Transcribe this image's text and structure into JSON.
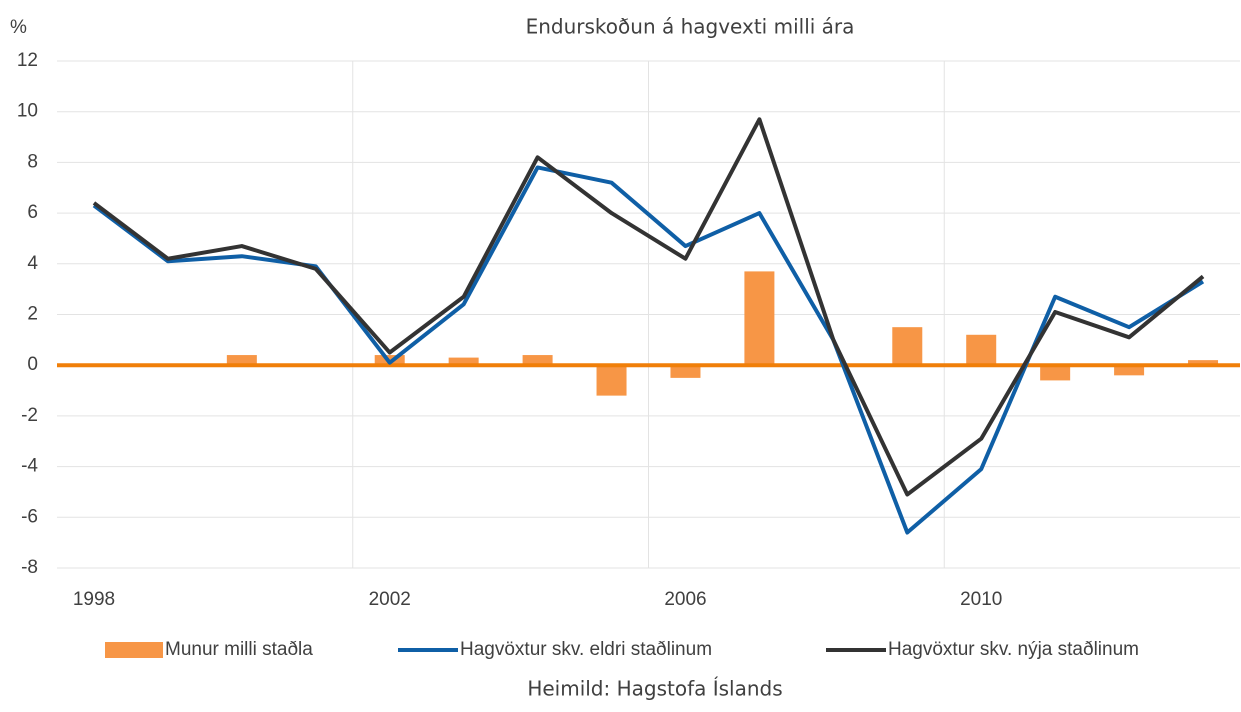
{
  "chart_data": {
    "type": "bar_line",
    "title": "Endurskoðun á hagvexti milli ára",
    "y_unit": "%",
    "source": "Heimild: Hagstofa Íslands",
    "categories": [
      "1998",
      null,
      null,
      null,
      "2002",
      null,
      null,
      null,
      "2006",
      null,
      null,
      null,
      "2010",
      null,
      null,
      null
    ],
    "series": [
      {
        "name": "Munur milli staðla",
        "type": "bar",
        "color": "#f79646",
        "values": [
          0.05,
          0.05,
          0.4,
          -0.05,
          0.4,
          0.3,
          0.4,
          -1.2,
          -0.5,
          3.7,
          0.0,
          1.5,
          1.2,
          -0.6,
          -0.4,
          0.2
        ]
      },
      {
        "name": "Hagvöxtur skv. eldri staðlinum",
        "type": "line",
        "color": "#0f5fa6",
        "values": [
          6.3,
          4.1,
          4.3,
          3.9,
          0.1,
          2.4,
          7.8,
          7.2,
          4.7,
          6.0,
          1.0,
          -6.6,
          -4.1,
          2.7,
          1.5,
          3.3
        ]
      },
      {
        "name": "Hagvöxtur skv. nýja staðlinum",
        "type": "line",
        "color": "#333333",
        "values": [
          6.4,
          4.2,
          4.7,
          3.8,
          0.5,
          2.7,
          8.2,
          6.0,
          4.2,
          9.7,
          1.0,
          -5.1,
          -2.9,
          2.1,
          1.1,
          3.5
        ]
      }
    ],
    "ylim": [
      -8,
      12
    ],
    "yticks": [
      -8,
      -6,
      -4,
      -2,
      0,
      2,
      4,
      6,
      8,
      10,
      12
    ],
    "grid": true,
    "zero_line_color": "#f07f09",
    "legend": "bottom"
  }
}
